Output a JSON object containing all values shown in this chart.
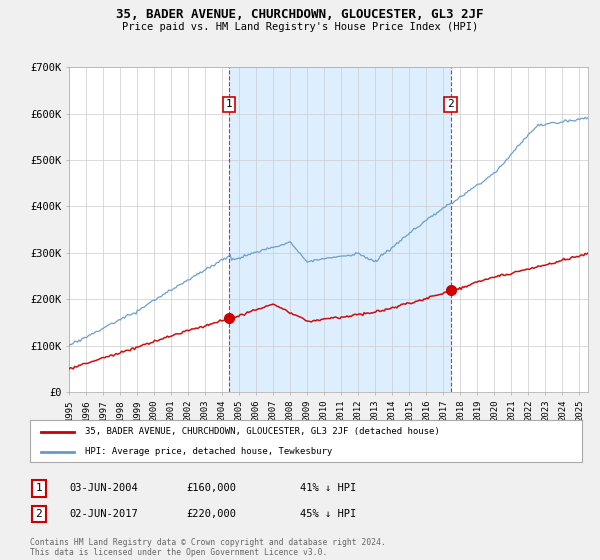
{
  "title": "35, BADER AVENUE, CHURCHDOWN, GLOUCESTER, GL3 2JF",
  "subtitle": "Price paid vs. HM Land Registry's House Price Index (HPI)",
  "background_color": "#f0f0f0",
  "plot_bg_color": "#ffffff",
  "shade_color": "#ddeeff",
  "red_color": "#cc0000",
  "blue_color": "#6699cc",
  "ylim": [
    0,
    700000
  ],
  "yticks": [
    0,
    100000,
    200000,
    300000,
    400000,
    500000,
    600000,
    700000
  ],
  "ytick_labels": [
    "£0",
    "£100K",
    "£200K",
    "£300K",
    "£400K",
    "£500K",
    "£600K",
    "£700K"
  ],
  "xlim_start": 1995,
  "xlim_end": 2025.5,
  "sale1_x": 2004.42,
  "sale1_y": 160000,
  "sale1_label": "1",
  "sale1_date": "03-JUN-2004",
  "sale1_price": "£160,000",
  "sale1_pct": "41% ↓ HPI",
  "sale2_x": 2017.42,
  "sale2_y": 220000,
  "sale2_label": "2",
  "sale2_date": "02-JUN-2017",
  "sale2_price": "£220,000",
  "sale2_pct": "45% ↓ HPI",
  "legend_line1": "35, BADER AVENUE, CHURCHDOWN, GLOUCESTER, GL3 2JF (detached house)",
  "legend_line2": "HPI: Average price, detached house, Tewkesbury",
  "footnote": "Contains HM Land Registry data © Crown copyright and database right 2024.\nThis data is licensed under the Open Government Licence v3.0."
}
